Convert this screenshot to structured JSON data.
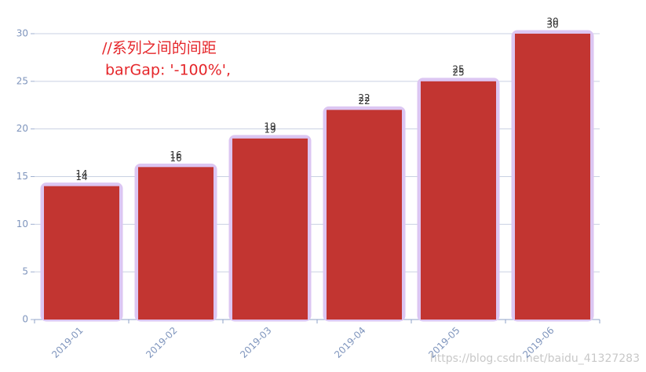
{
  "chart_data": {
    "type": "bar",
    "annotations": [
      "//系列之间的间距",
      "barGap: '-100%',"
    ],
    "watermark": "https://blog.csdn.net/baidu_41327283",
    "categories": [
      "2019-01",
      "2019-02",
      "2019-03",
      "2019-04",
      "2019-05",
      "2019-06"
    ],
    "series": [
      {
        "color": "#dcc6f2",
        "values": [
          14,
          16,
          19,
          22,
          25,
          30
        ]
      },
      {
        "color": "#c23531",
        "values": [
          14,
          16,
          19,
          22,
          25,
          30
        ]
      }
    ],
    "ylim": [
      0,
      30
    ],
    "yticks": [
      0,
      5,
      10,
      15,
      20,
      25,
      30
    ],
    "grid": true
  }
}
